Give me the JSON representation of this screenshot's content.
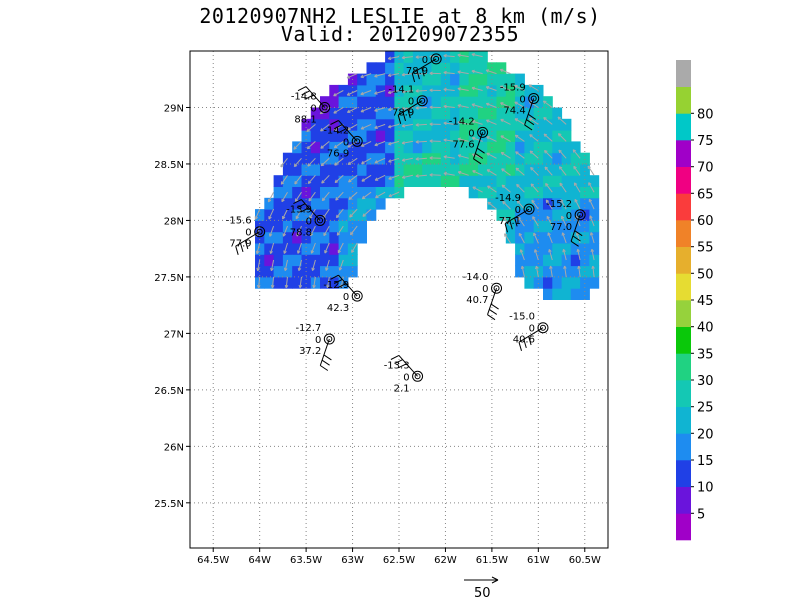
{
  "title": {
    "line1": "20120907NH2 LESLIE at 8 km (m/s)",
    "line2": "Valid: 201209072355"
  },
  "map": {
    "lon_range": [
      -64.75,
      -60.25
    ],
    "lat_range": [
      25.1,
      29.5
    ],
    "x_ticks": [
      {
        "lon": -64.5,
        "label": "64.5W"
      },
      {
        "lon": -64.0,
        "label": "64W"
      },
      {
        "lon": -63.5,
        "label": "63.5W"
      },
      {
        "lon": -63.0,
        "label": "63W"
      },
      {
        "lon": -62.5,
        "label": "62.5W"
      },
      {
        "lon": -62.0,
        "label": "62W"
      },
      {
        "lon": -61.5,
        "label": "61.5W"
      },
      {
        "lon": -61.0,
        "label": "61W"
      },
      {
        "lon": -60.5,
        "label": "60.5W"
      }
    ],
    "y_ticks": [
      {
        "lat": 29.0,
        "label": "29N"
      },
      {
        "lat": 28.5,
        "label": "28.5N"
      },
      {
        "lat": 28.0,
        "label": "28N"
      },
      {
        "lat": 27.5,
        "label": "27.5N"
      },
      {
        "lat": 27.0,
        "label": "27N"
      },
      {
        "lat": 26.5,
        "label": "26.5N"
      },
      {
        "lat": 26.0,
        "label": "26N"
      },
      {
        "lat": 25.5,
        "label": "25.5N"
      }
    ],
    "grid": true
  },
  "colorbar": {
    "colors": [
      "#a000c8",
      "#6a14dc",
      "#2040e6",
      "#1e8cf0",
      "#10b4d2",
      "#14c8b4",
      "#20d282",
      "#0ac80a",
      "#96d23c",
      "#e6dc32",
      "#e6af2d",
      "#f08228",
      "#fa3c3c",
      "#f00082",
      "#a000c8",
      "#00c8c8",
      "#96d232",
      "#aaaaaa"
    ],
    "labels": [
      "5",
      "10",
      "15",
      "20",
      "25",
      "30",
      "35",
      "40",
      "45",
      "50",
      "55",
      "60",
      "65",
      "70",
      "75",
      "80"
    ]
  },
  "stations": [
    {
      "lon": -62.1,
      "lat": 29.43,
      "temp": "",
      "mark": "0",
      "rh": "78.9"
    },
    {
      "lon": -61.05,
      "lat": 29.08,
      "temp": "-15.9",
      "mark": "0",
      "rh": "74.4"
    },
    {
      "lon": -63.3,
      "lat": 29.0,
      "temp": "-14.8",
      "mark": "0",
      "rh": "88.1"
    },
    {
      "lon": -62.25,
      "lat": 29.06,
      "temp": "-14.1",
      "mark": "0",
      "rh": "78.9"
    },
    {
      "lon": -61.6,
      "lat": 28.78,
      "temp": "-14.2",
      "mark": "0",
      "rh": "77.6"
    },
    {
      "lon": -62.95,
      "lat": 28.7,
      "temp": "-14.2",
      "mark": "0",
      "rh": "76.9"
    },
    {
      "lon": -61.1,
      "lat": 28.1,
      "temp": "-14.9",
      "mark": "0",
      "rh": "77.1"
    },
    {
      "lon": -60.55,
      "lat": 28.05,
      "temp": "-15.2",
      "mark": "0",
      "rh": "77.0"
    },
    {
      "lon": -63.35,
      "lat": 28.0,
      "temp": "-13.9",
      "mark": "0",
      "rh": "78.8"
    },
    {
      "lon": -64.0,
      "lat": 27.9,
      "temp": "-15.6",
      "mark": "0",
      "rh": "77.9"
    },
    {
      "lon": -61.45,
      "lat": 27.4,
      "temp": "-14.0",
      "mark": "0",
      "rh": "40.7"
    },
    {
      "lon": -62.95,
      "lat": 27.33,
      "temp": "-12.9",
      "mark": "0",
      "rh": "42.3"
    },
    {
      "lon": -60.95,
      "lat": 27.05,
      "temp": "-15.0",
      "mark": "0",
      "rh": "40.6"
    },
    {
      "lon": -63.25,
      "lat": 26.95,
      "temp": "-12.7",
      "mark": "0",
      "rh": "37.2"
    },
    {
      "lon": -62.3,
      "lat": 26.62,
      "temp": "-13.3",
      "mark": "0",
      "rh": "2.1"
    }
  ],
  "reference_vector": {
    "label": "50"
  }
}
